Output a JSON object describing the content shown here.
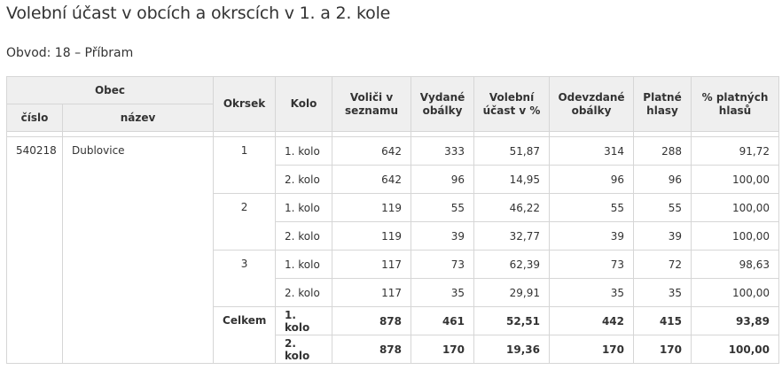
{
  "title": "Volební účast v obcích a okrscích v 1. a 2. kole",
  "subtitle": "Obvod: 18 – Příbram",
  "headers": {
    "obec": "Obec",
    "cislo": "číslo",
    "nazev": "název",
    "okrsek": "Okrsek",
    "kolo": "Kolo",
    "volici": "Voliči v seznamu",
    "vydane": "Vydané obálky",
    "ucast": "Volební účast v %",
    "odevzdane": "Odevzdané obálky",
    "platne": "Platné hlasy",
    "pct_platnych": "% platných hlasů"
  },
  "obec": {
    "cislo": "540218",
    "nazev": "Dublovice"
  },
  "rows": [
    {
      "okrsek": "1",
      "kolo": "1. kolo",
      "volici": "642",
      "vydane": "333",
      "ucast": "51,87",
      "odevzdane": "314",
      "platne": "288",
      "pct": "91,72"
    },
    {
      "okrsek": "",
      "kolo": "2. kolo",
      "volici": "642",
      "vydane": "96",
      "ucast": "14,95",
      "odevzdane": "96",
      "platne": "96",
      "pct": "100,00"
    },
    {
      "okrsek": "2",
      "kolo": "1. kolo",
      "volici": "119",
      "vydane": "55",
      "ucast": "46,22",
      "odevzdane": "55",
      "platne": "55",
      "pct": "100,00"
    },
    {
      "okrsek": "",
      "kolo": "2. kolo",
      "volici": "119",
      "vydane": "39",
      "ucast": "32,77",
      "odevzdane": "39",
      "platne": "39",
      "pct": "100,00"
    },
    {
      "okrsek": "3",
      "kolo": "1. kolo",
      "volici": "117",
      "vydane": "73",
      "ucast": "62,39",
      "odevzdane": "73",
      "platne": "72",
      "pct": "98,63"
    },
    {
      "okrsek": "",
      "kolo": "2. kolo",
      "volici": "117",
      "vydane": "35",
      "ucast": "29,91",
      "odevzdane": "35",
      "platne": "35",
      "pct": "100,00"
    },
    {
      "okrsek": "Celkem",
      "kolo": "1. kolo",
      "volici": "878",
      "vydane": "461",
      "ucast": "52,51",
      "odevzdane": "442",
      "platne": "415",
      "pct": "93,89"
    },
    {
      "okrsek": "",
      "kolo": "2. kolo",
      "volici": "878",
      "vydane": "170",
      "ucast": "19,36",
      "odevzdane": "170",
      "platne": "170",
      "pct": "100,00"
    }
  ]
}
